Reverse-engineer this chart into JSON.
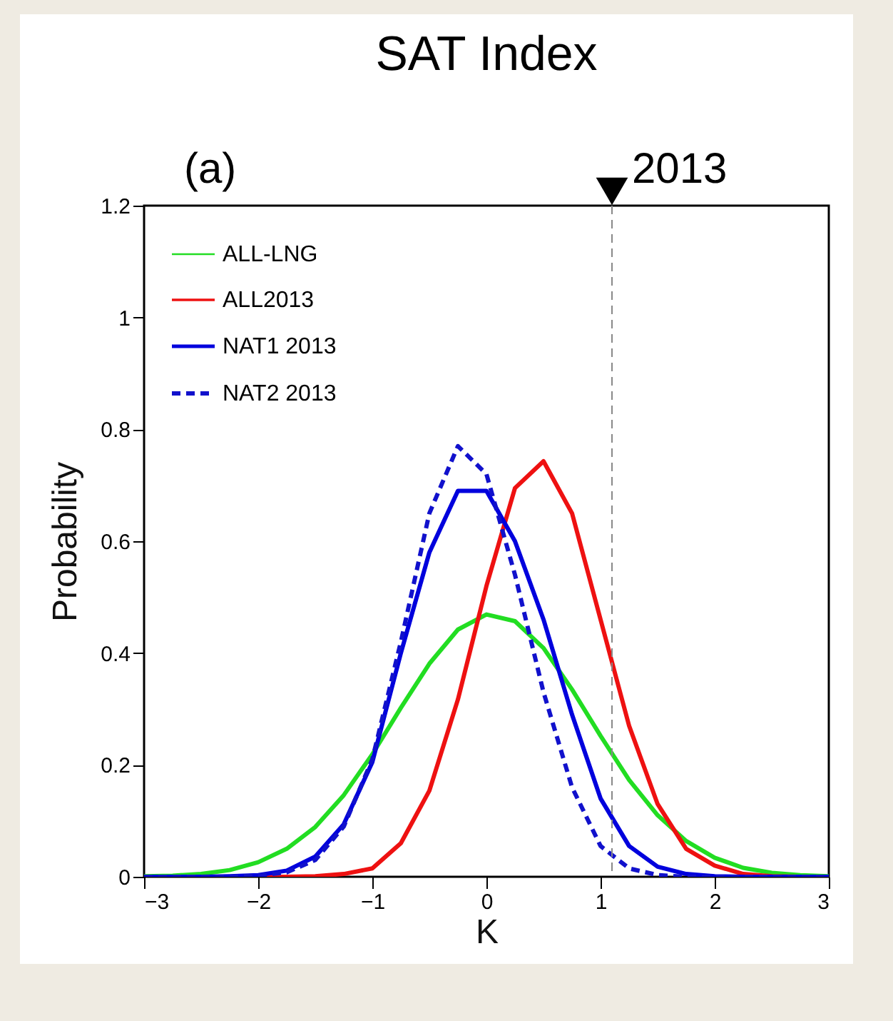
{
  "chart_data": {
    "type": "line",
    "title": "SAT Index",
    "xlabel": "K",
    "ylabel": "Probability",
    "annotations": [
      "(a)",
      {
        "text": "2013",
        "x": 1.1,
        "y": 1.2
      }
    ],
    "x": [
      -3,
      -2.75,
      -2.5,
      -2.25,
      -2,
      -1.75,
      -1.5,
      -1.25,
      -1,
      -0.75,
      -0.5,
      -0.25,
      0,
      0.25,
      0.5,
      0.75,
      1,
      1.25,
      1.5,
      1.75,
      2,
      2.25,
      2.5,
      2.75,
      3
    ],
    "series": [
      {
        "name": "ALL-LNG",
        "color": "#22dd22",
        "line_style": "solid",
        "values": [
          0.001,
          0.002,
          0.005,
          0.012,
          0.026,
          0.05,
          0.089,
          0.146,
          0.219,
          0.302,
          0.381,
          0.442,
          0.469,
          0.457,
          0.409,
          0.335,
          0.252,
          0.173,
          0.11,
          0.064,
          0.034,
          0.016,
          0.007,
          0.003,
          0.001
        ]
      },
      {
        "name": "ALL2013",
        "color": "#ee1111",
        "line_style": "solid",
        "values": [
          null,
          null,
          null,
          0,
          0,
          0,
          0.001,
          0.005,
          0.015,
          0.06,
          0.154,
          0.317,
          0.52,
          0.695,
          0.743,
          0.65,
          0.46,
          0.27,
          0.13,
          0.05,
          0.02,
          0.005,
          0.001,
          0,
          0
        ]
      },
      {
        "name": "NAT1 2013",
        "color": "#0000dd",
        "line_style": "solid",
        "values": [
          0,
          0,
          0,
          0.001,
          0.003,
          0.011,
          0.036,
          0.094,
          0.205,
          0.4,
          0.58,
          0.69,
          0.69,
          0.6,
          0.46,
          0.29,
          0.14,
          0.055,
          0.018,
          0.005,
          0.001,
          0,
          0,
          0,
          0
        ]
      },
      {
        "name": "NAT2 2013",
        "color": "#1111cc",
        "line_style": "dashed",
        "values": [
          0,
          0,
          0,
          0,
          0.002,
          0.008,
          0.03,
          0.09,
          0.21,
          0.42,
          0.65,
          0.77,
          0.72,
          0.54,
          0.33,
          0.16,
          0.055,
          0.015,
          0.003,
          0,
          0,
          0,
          0,
          0,
          0
        ]
      }
    ],
    "xlim": [
      -3,
      3
    ],
    "xticks": [
      -3,
      -2,
      -1,
      0,
      1,
      2,
      3
    ],
    "ylim": [
      0,
      1.2
    ],
    "yticks": [
      0,
      0.2,
      0.4,
      0.6,
      0.8,
      1,
      1.2
    ],
    "ref_lines": [
      {
        "axis": "x",
        "value": 1.1,
        "color": "#888888",
        "line_style": "dashed"
      }
    ],
    "grid": false,
    "legend": "top left",
    "marker": "none"
  }
}
